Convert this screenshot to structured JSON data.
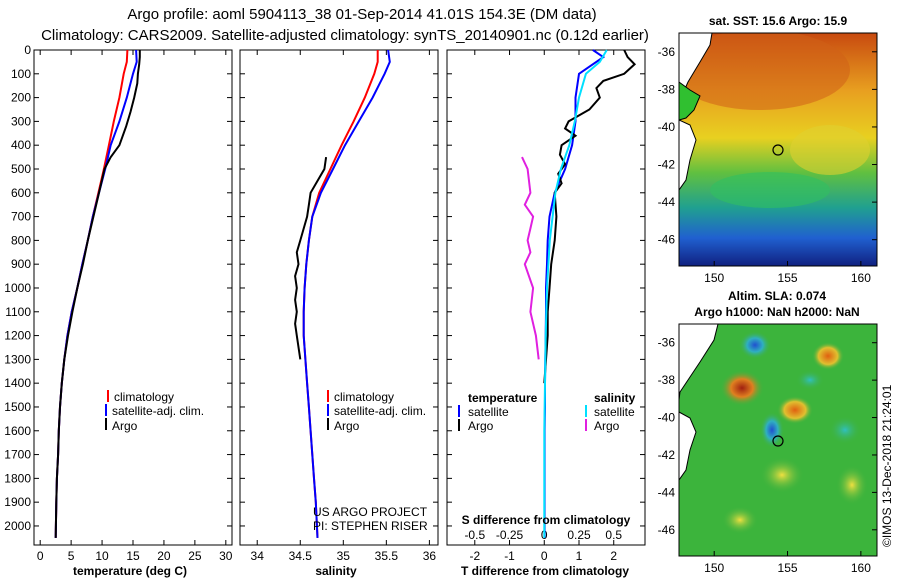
{
  "title": {
    "line1": "Argo profile: aoml 5904113_38 01-Sep-2014 41.01S 154.3E (DM data)",
    "line2": "Climatology: CARS2009. Satellite-adjusted climatology: synTS_20140901.nc (0.12d earlier)"
  },
  "colors": {
    "climatology": "#ff0000",
    "satellite": "#0000ff",
    "argo": "#000000",
    "sat_s": "#00e0ff",
    "argo_s": "#e020e0"
  },
  "chart_data": [
    {
      "type": "line",
      "id": "temperature",
      "xlabel": "temperature (deg C)",
      "ylabel": "",
      "xlim": [
        -1,
        31
      ],
      "ylim": [
        2080,
        0
      ],
      "xticks": [
        "0",
        "5",
        "10",
        "15",
        "20",
        "25",
        "30"
      ],
      "yticks": [
        "0",
        "100",
        "200",
        "300",
        "400",
        "500",
        "600",
        "700",
        "800",
        "900",
        "1000",
        "1100",
        "1200",
        "1300",
        "1400",
        "1500",
        "1600",
        "1700",
        "1800",
        "1900",
        "2000"
      ],
      "legend": [
        "climatology",
        "satellite-adj. clim.",
        "Argo"
      ],
      "series": [
        {
          "name": "climatology",
          "x": [
            14.1,
            14.0,
            13.5,
            12.8,
            11.9,
            11.1,
            10.3,
            9.4,
            8.5,
            7.7,
            6.8,
            6.0,
            5.1,
            4.4,
            3.9,
            3.5,
            3.2,
            3.0,
            2.9,
            2.7,
            2.6,
            2.5
          ],
          "y": [
            0,
            50,
            100,
            200,
            300,
            400,
            500,
            600,
            700,
            800,
            900,
            1000,
            1100,
            1200,
            1300,
            1400,
            1500,
            1600,
            1700,
            1800,
            1900,
            2050
          ]
        },
        {
          "name": "satellite-adj. clim.",
          "x": [
            15.5,
            15.6,
            15.0,
            14.0,
            12.8,
            11.4,
            10.5,
            9.5,
            8.5,
            7.7,
            6.8,
            6.0,
            5.1,
            4.4,
            3.9,
            3.5,
            3.2,
            3.0,
            2.9,
            2.7,
            2.6,
            2.5
          ],
          "y": [
            0,
            50,
            100,
            200,
            300,
            400,
            500,
            600,
            700,
            800,
            900,
            1000,
            1100,
            1200,
            1300,
            1400,
            1500,
            1600,
            1700,
            1800,
            1900,
            2050
          ]
        },
        {
          "name": "Argo",
          "x": [
            16.1,
            16.1,
            16.0,
            15.8,
            15.7,
            15.2,
            14.6,
            13.9,
            12.8,
            11.4,
            10.4,
            9.5,
            8.6,
            7.7,
            6.9,
            6.0,
            5.2,
            4.5,
            3.9,
            3.5,
            3.2,
            3.0,
            2.9,
            2.7,
            2.6,
            2.5
          ],
          "y": [
            0,
            30,
            60,
            100,
            140,
            200,
            260,
            320,
            400,
            450,
            500,
            600,
            700,
            800,
            900,
            1000,
            1100,
            1200,
            1300,
            1400,
            1500,
            1600,
            1700,
            1800,
            1900,
            2050
          ]
        }
      ]
    },
    {
      "type": "line",
      "id": "salinity",
      "xlabel": "salinity",
      "xlim": [
        33.8,
        36.1
      ],
      "ylim": [
        2080,
        0
      ],
      "xticks": [
        "34",
        "34.5",
        "35",
        "35.5",
        "36"
      ],
      "legend": [
        "climatology",
        "satellite-adj. clim.",
        "Argo"
      ],
      "series": [
        {
          "name": "climatology",
          "x": [
            35.4,
            35.4,
            35.36,
            35.25,
            35.12,
            34.98,
            34.85,
            34.72,
            34.64,
            34.6,
            34.57,
            34.55,
            34.54,
            34.54,
            34.56,
            34.58,
            34.6,
            34.62,
            34.64,
            34.66,
            34.68,
            34.7
          ],
          "y": [
            0,
            50,
            100,
            200,
            300,
            400,
            500,
            600,
            700,
            800,
            900,
            1000,
            1100,
            1200,
            1300,
            1400,
            1500,
            1600,
            1700,
            1800,
            1900,
            2050
          ]
        },
        {
          "name": "satellite-adj. clim.",
          "x": [
            35.52,
            35.54,
            35.48,
            35.34,
            35.18,
            35.02,
            34.88,
            34.74,
            34.64,
            34.6,
            34.57,
            34.55,
            34.54,
            34.54,
            34.56,
            34.58,
            34.6,
            34.62,
            34.64,
            34.66,
            34.68,
            34.7
          ],
          "y": [
            0,
            50,
            100,
            200,
            300,
            400,
            500,
            600,
            700,
            800,
            900,
            1000,
            1100,
            1200,
            1300,
            1400,
            1500,
            1600,
            1700,
            1800,
            1900,
            2050
          ]
        },
        {
          "name": "Argo",
          "x": [
            34.8,
            34.78,
            34.7,
            34.62,
            34.6,
            34.58,
            34.54,
            34.5,
            34.46,
            34.48,
            34.44,
            34.46,
            34.44,
            34.46,
            34.44,
            34.46,
            34.5
          ],
          "y": [
            450,
            500,
            550,
            600,
            650,
            700,
            750,
            800,
            850,
            900,
            950,
            1000,
            1050,
            1100,
            1150,
            1200,
            1300
          ]
        }
      ]
    },
    {
      "type": "line",
      "id": "difference",
      "xlabel": "T difference from climatology",
      "x2label": "S difference from climatology",
      "xlim": [
        -2.8,
        2.9
      ],
      "ylim": [
        2080,
        0
      ],
      "xticks": [
        "-2",
        "-1",
        "0",
        "1",
        "2"
      ],
      "x2ticks": [
        "-0.5",
        "-0.25",
        "0",
        "0.25",
        "0.5"
      ],
      "legend_left_title": "temperature",
      "legend_right_title": "salinity",
      "legend_left": [
        "satellite",
        "Argo"
      ],
      "legend_right": [
        "satellite",
        "Argo"
      ],
      "series": [
        {
          "name": "T satellite",
          "x": [
            1.4,
            1.7,
            1.0,
            0.9,
            0.9,
            0.8,
            0.6,
            0.3,
            0.15,
            0.1,
            0.08,
            0.05,
            0.05,
            0.04,
            0.03,
            0.02,
            0.02,
            0.01,
            0.01,
            0.01
          ],
          "y": [
            0,
            30,
            100,
            200,
            300,
            400,
            500,
            600,
            700,
            800,
            900,
            1000,
            1100,
            1200,
            1300,
            1400,
            1500,
            1600,
            1800,
            2050
          ]
        },
        {
          "name": "T Argo",
          "x": [
            2.3,
            2.4,
            2.6,
            2.3,
            1.7,
            1.5,
            1.6,
            1.3,
            0.7,
            0.6,
            0.9,
            0.5,
            0.45,
            0.6,
            0.4,
            0.5,
            0.3,
            0.35,
            0.3,
            0.2,
            0.15,
            0.1,
            0.1,
            0.05,
            0.0
          ],
          "y": [
            0,
            30,
            60,
            100,
            130,
            160,
            200,
            250,
            300,
            330,
            360,
            400,
            440,
            480,
            520,
            560,
            600,
            700,
            800,
            900,
            1000,
            1100,
            1200,
            1300,
            1400
          ]
        },
        {
          "name": "S satellite",
          "x": [
            0.45,
            0.4,
            0.3,
            0.25,
            0.22,
            0.18,
            0.12,
            0.08,
            0.06,
            0.04,
            0.03,
            0.02,
            0.01,
            0.0,
            0.0
          ],
          "y": [
            0,
            50,
            100,
            200,
            300,
            400,
            500,
            600,
            700,
            800,
            900,
            1000,
            1200,
            1600,
            2050
          ]
        },
        {
          "name": "S Argo",
          "x": [
            -0.16,
            -0.12,
            -0.1,
            -0.14,
            -0.08,
            -0.1,
            -0.12,
            -0.1,
            -0.14,
            -0.08,
            -0.1,
            -0.06,
            -0.04
          ],
          "y": [
            450,
            500,
            600,
            650,
            700,
            750,
            800,
            850,
            900,
            1000,
            1100,
            1200,
            1300
          ]
        }
      ]
    }
  ],
  "maps": {
    "sst": {
      "title": "sat. SST: 15.6 Argo: 15.9",
      "yticks": [
        "-36",
        "-38",
        "-40",
        "-42",
        "-44",
        "-46"
      ],
      "xticks": [
        "150",
        "155",
        "160"
      ]
    },
    "sla": {
      "title_line1": "Altim. SLA: 0.074",
      "title_line2": "Argo h1000: NaN h2000: NaN",
      "yticks": [
        "-36",
        "-38",
        "-40",
        "-42",
        "-44",
        "-46"
      ],
      "xticks": [
        "150",
        "155",
        "160"
      ]
    }
  },
  "credits": {
    "line1": "US ARGO PROJECT",
    "line2": "PI: STEPHEN RISER",
    "stamp": "©IMOS 13-Dec-2018 21:24:01"
  }
}
